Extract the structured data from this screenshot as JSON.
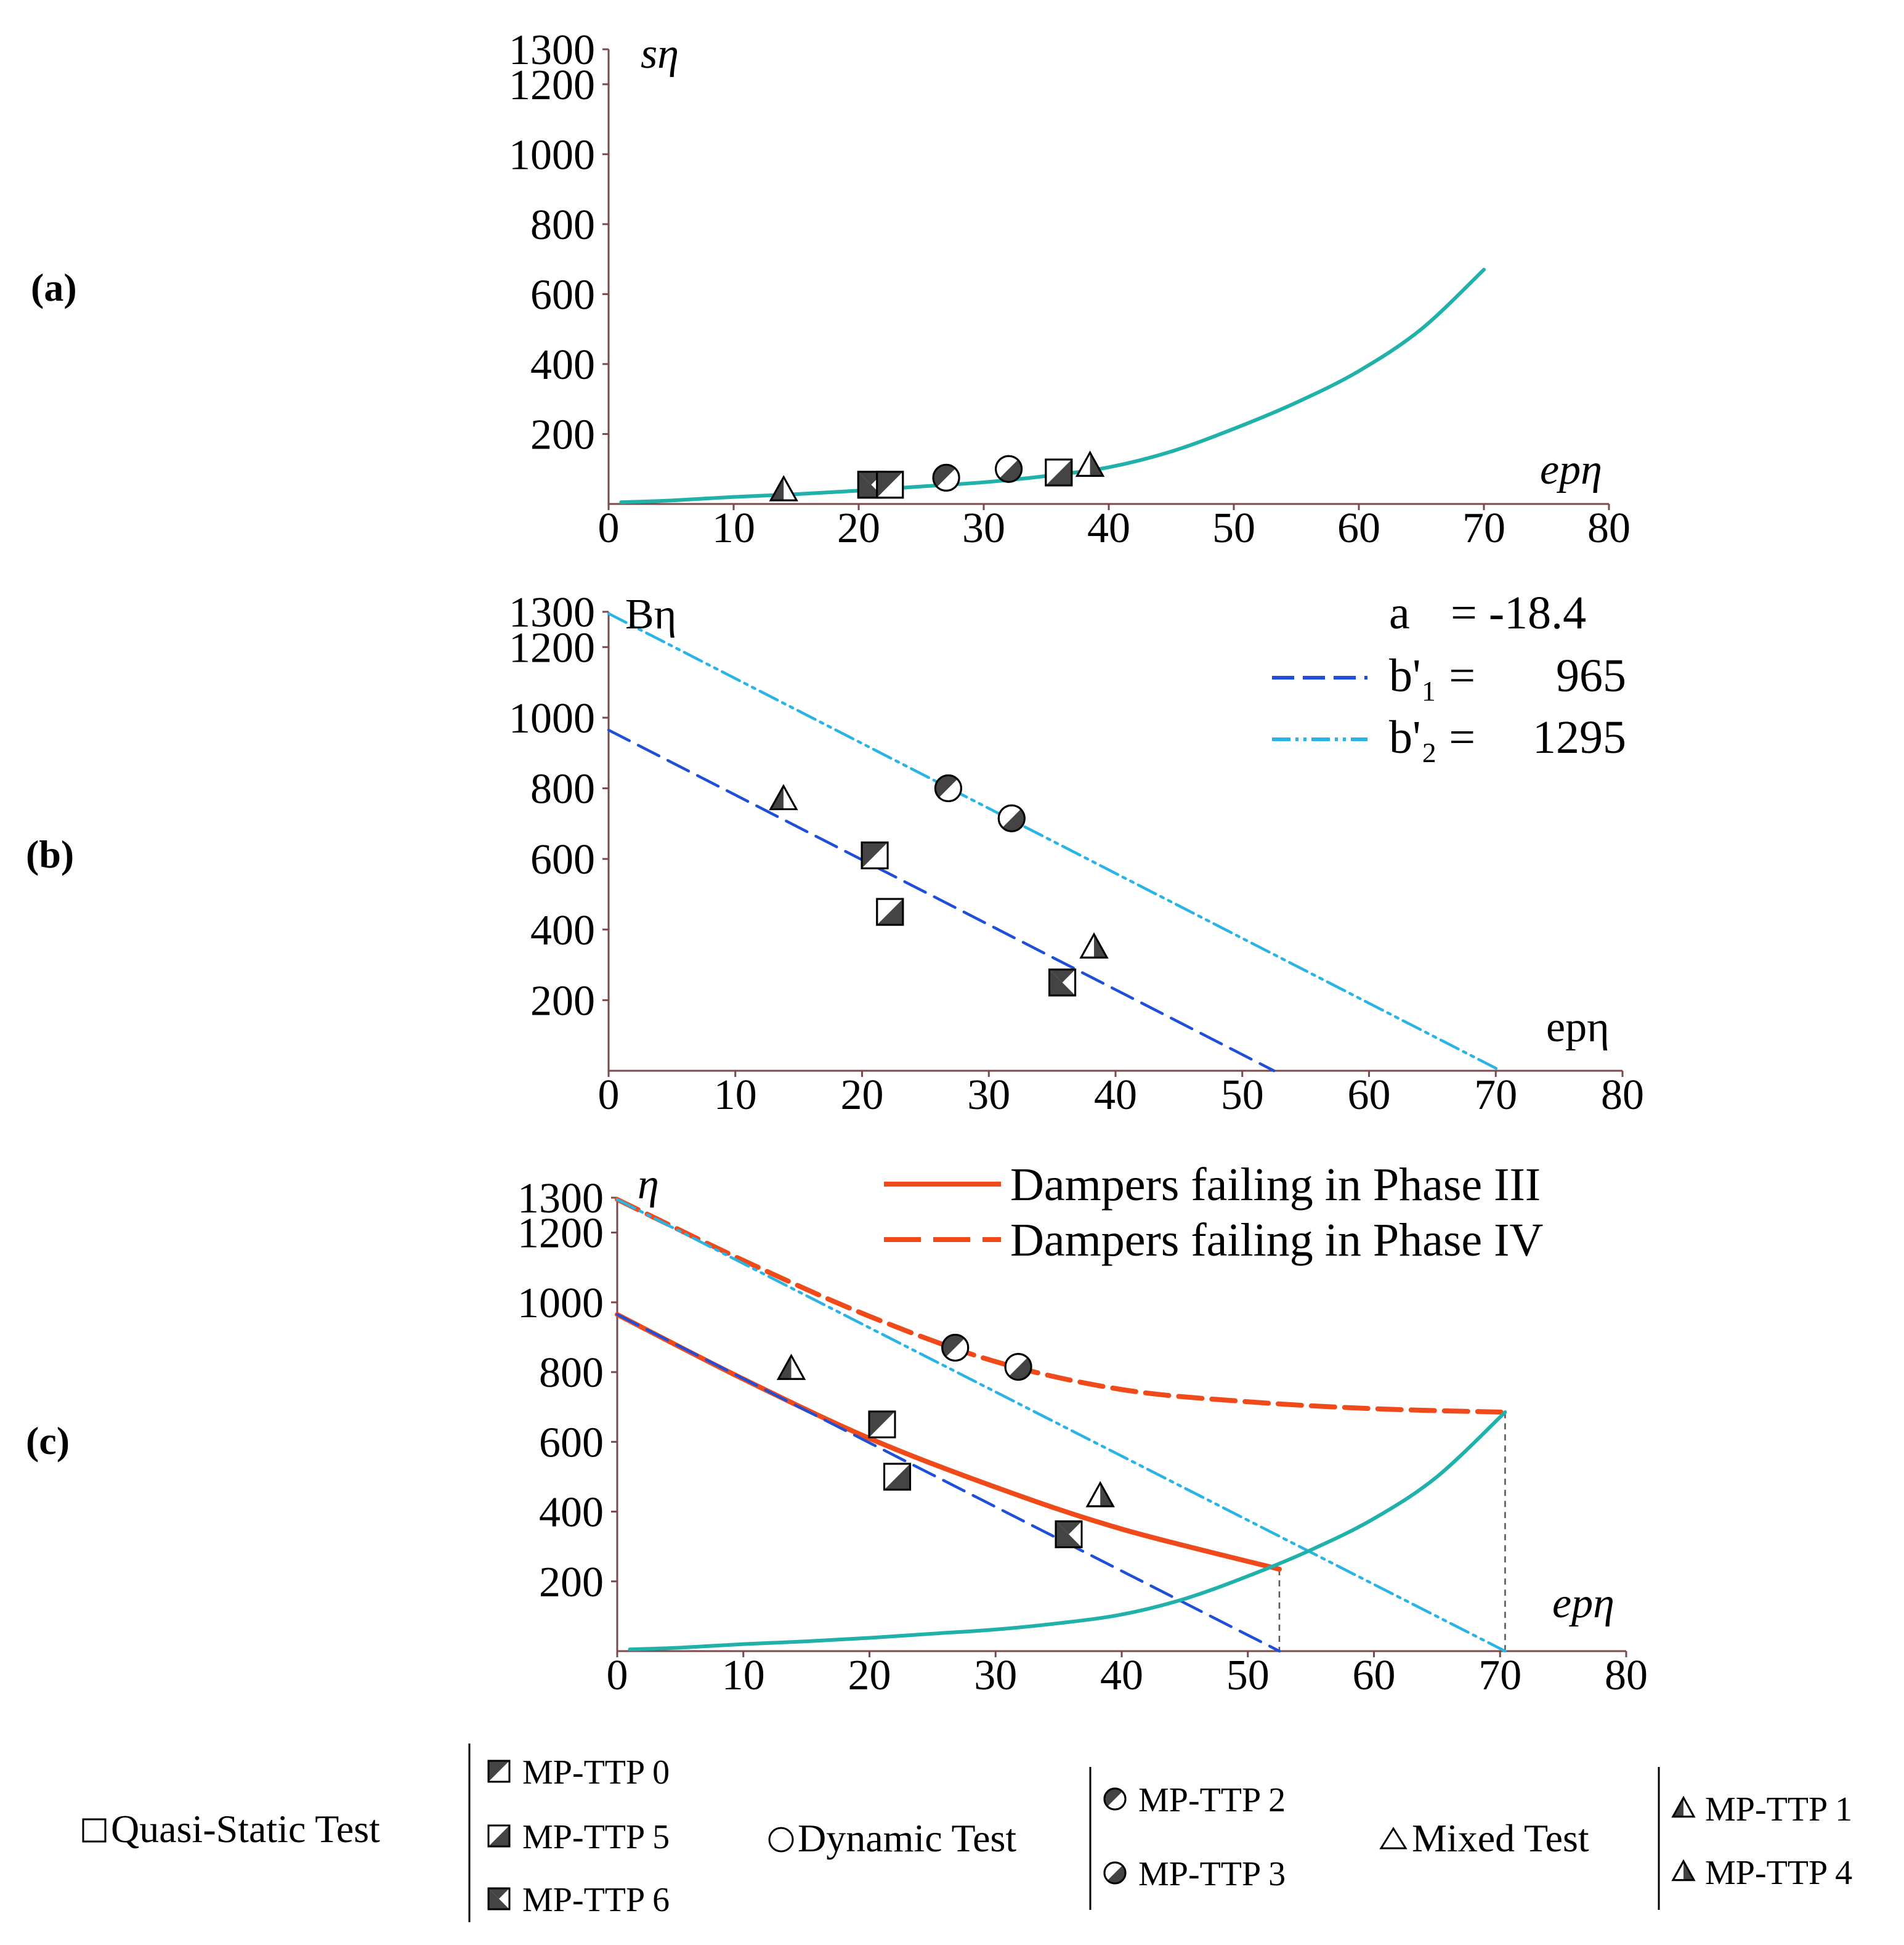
{
  "panel_labels": [
    "(a)",
    "(b)",
    "(c)"
  ],
  "chart_data": [
    {
      "type": "line",
      "panel": "(a)",
      "ylabel": "sη",
      "xlabel": "epη",
      "xlim": [
        0,
        80
      ],
      "ylim": [
        0,
        1300
      ],
      "xticks": [
        0,
        10,
        20,
        30,
        40,
        50,
        60,
        70,
        80
      ],
      "yticks": [
        200,
        400,
        600,
        800,
        1000,
        1200,
        1300
      ],
      "series": [
        {
          "name": "sη curve",
          "color": "#20b2aa",
          "x": [
            1,
            5,
            10,
            15,
            20,
            25,
            30,
            35,
            40,
            45,
            50,
            55,
            60,
            65,
            70
          ],
          "y": [
            5,
            10,
            20,
            28,
            38,
            50,
            62,
            80,
            105,
            150,
            215,
            290,
            380,
            500,
            670
          ]
        }
      ],
      "markers": [
        {
          "label": "MP-TTP 1",
          "shape": "triangle",
          "x": 14,
          "y": 40
        },
        {
          "label": "MP-TTP 6",
          "shape": "square",
          "x": 21,
          "y": 55
        },
        {
          "label": "MP-TTP 0",
          "shape": "square",
          "x": 22.5,
          "y": 55
        },
        {
          "label": "MP-TTP 2",
          "shape": "circle",
          "x": 27,
          "y": 75
        },
        {
          "label": "MP-TTP 3",
          "shape": "circle",
          "x": 32,
          "y": 100
        },
        {
          "label": "MP-TTP 5",
          "shape": "square",
          "x": 36,
          "y": 90
        },
        {
          "label": "MP-TTP 4",
          "shape": "triangle",
          "x": 38.5,
          "y": 110
        }
      ]
    },
    {
      "type": "line",
      "panel": "(b)",
      "ylabel": "Bη",
      "xlabel": "epη",
      "xlim": [
        0,
        80
      ],
      "ylim": [
        0,
        1300
      ],
      "xticks": [
        0,
        10,
        20,
        30,
        40,
        50,
        60,
        70,
        80
      ],
      "yticks": [
        200,
        400,
        600,
        800,
        1000,
        1200,
        1300
      ],
      "annotation": {
        "a_label": "a",
        "a_value": "= -18.4"
      },
      "series": [
        {
          "name": "b'₁ =",
          "value": "965",
          "color": "#1f4fd8",
          "dash": "long",
          "x": [
            0,
            52.5
          ],
          "y": [
            965,
            0
          ]
        },
        {
          "name": "b'₂ =",
          "value": "1295",
          "color": "#2ab4e6",
          "dash": "dashdotdot",
          "x": [
            0,
            70.4
          ],
          "y": [
            1295,
            0
          ]
        }
      ],
      "markers": [
        {
          "label": "MP-TTP 1",
          "shape": "triangle",
          "x": 13.8,
          "y": 770
        },
        {
          "label": "MP-TTP 2",
          "shape": "circle",
          "x": 26.8,
          "y": 800
        },
        {
          "label": "MP-TTP 3",
          "shape": "circle",
          "x": 31.8,
          "y": 715
        },
        {
          "label": "MP-TTP 0",
          "shape": "square",
          "x": 21,
          "y": 610
        },
        {
          "label": "MP-TTP 5",
          "shape": "square",
          "x": 22.2,
          "y": 450
        },
        {
          "label": "MP-TTP 6",
          "shape": "square",
          "x": 35.8,
          "y": 250
        },
        {
          "label": "MP-TTP 4",
          "shape": "triangle",
          "x": 38.3,
          "y": 350
        }
      ]
    },
    {
      "type": "line",
      "panel": "(c)",
      "ylabel": "η",
      "xlabel": "epη",
      "xlim": [
        0,
        80
      ],
      "ylim": [
        0,
        1300
      ],
      "xticks": [
        0,
        10,
        20,
        30,
        40,
        50,
        60,
        70,
        80
      ],
      "yticks": [
        200,
        400,
        600,
        800,
        1000,
        1200,
        1300
      ],
      "series": [
        {
          "name": "Dampers failing in Phase III",
          "color": "#f04a1a",
          "dash": "solid",
          "x": [
            0,
            10,
            20,
            30,
            40,
            52.5
          ],
          "y": [
            965,
            780,
            610,
            470,
            350,
            235
          ]
        },
        {
          "name": "Dampers failing in Phase IV",
          "color": "#f04a1a",
          "dash": "long",
          "x": [
            0,
            10,
            20,
            30,
            40,
            50,
            60,
            70.4
          ],
          "y": [
            1295,
            1120,
            960,
            830,
            750,
            715,
            695,
            685
          ]
        },
        {
          "name": "b'₁ line",
          "color": "#1f4fd8",
          "dash": "long",
          "x": [
            0,
            52.5
          ],
          "y": [
            965,
            0
          ]
        },
        {
          "name": "b'₂ line",
          "color": "#2ab4e6",
          "dash": "dashdotdot",
          "x": [
            0,
            70.4
          ],
          "y": [
            1295,
            0
          ]
        },
        {
          "name": "sη curve",
          "color": "#20b2aa",
          "dash": "solid",
          "x": [
            1,
            5,
            10,
            15,
            20,
            25,
            30,
            35,
            40,
            45,
            50,
            55,
            60,
            65,
            70.4
          ],
          "y": [
            5,
            10,
            20,
            28,
            38,
            50,
            62,
            80,
            105,
            150,
            215,
            290,
            380,
            500,
            685
          ]
        }
      ],
      "dropLines": [
        {
          "x": 52.5,
          "y": 235
        },
        {
          "x": 70.4,
          "y": 685
        }
      ],
      "markers": [
        {
          "label": "MP-TTP 1",
          "shape": "triangle",
          "x": 13.8,
          "y": 810
        },
        {
          "label": "MP-TTP 2",
          "shape": "circle",
          "x": 26.8,
          "y": 870
        },
        {
          "label": "MP-TTP 3",
          "shape": "circle",
          "x": 31.8,
          "y": 815
        },
        {
          "label": "MP-TTP 0",
          "shape": "square",
          "x": 21,
          "y": 650
        },
        {
          "label": "MP-TTP 5",
          "shape": "square",
          "x": 22.2,
          "y": 500
        },
        {
          "label": "MP-TTP 6",
          "shape": "square",
          "x": 35.8,
          "y": 335
        },
        {
          "label": "MP-TTP 4",
          "shape": "triangle",
          "x": 38.3,
          "y": 445
        }
      ]
    }
  ],
  "key": {
    "quasi_static": "Quasi-Static Test",
    "dynamic": "Dynamic Test",
    "mixed": "Mixed Test",
    "mp_ttp_0": "MP-TTP 0",
    "mp_ttp_5": "MP-TTP 5",
    "mp_ttp_6": "MP-TTP 6",
    "mp_ttp_2": "MP-TTP 2",
    "mp_ttp_3": "MP-TTP 3",
    "mp_ttp_1": "MP-TTP 1",
    "mp_ttp_4": "MP-TTP 4"
  },
  "colors": {
    "teal": "#20b2aa",
    "blue": "#1f4fd8",
    "cyan": "#2ab4e6",
    "orange": "#f04a1a",
    "axis": "#7a4a4a",
    "marker_dark": "#444444"
  }
}
